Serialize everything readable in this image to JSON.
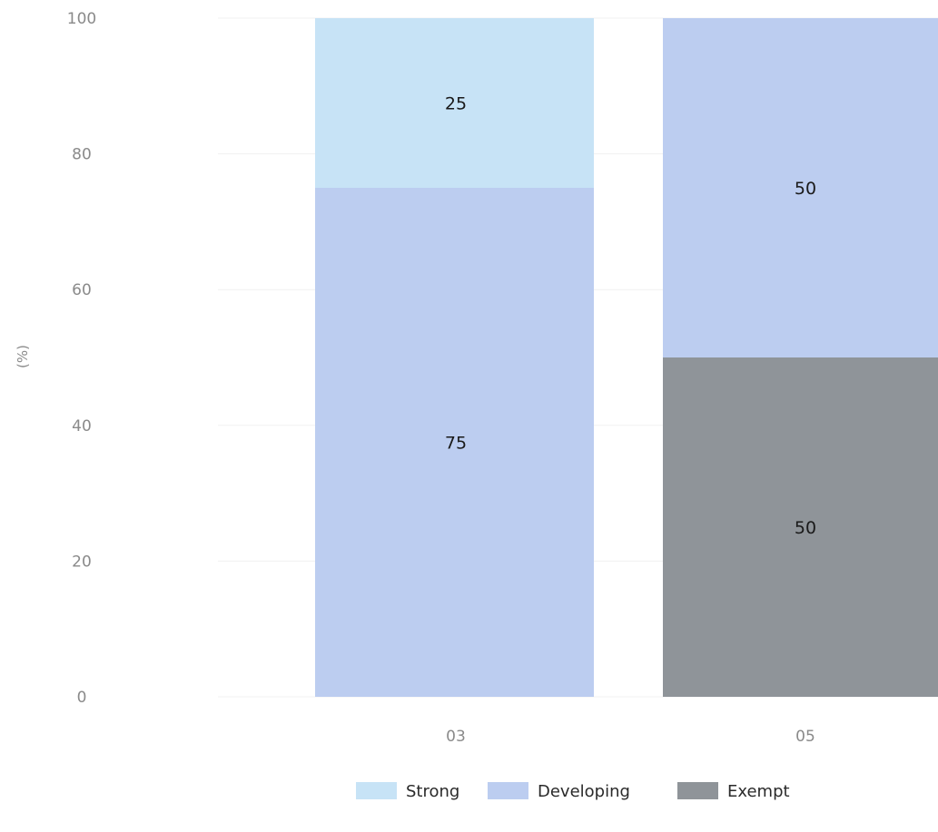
{
  "chart_data": {
    "type": "bar",
    "stacked": true,
    "categories": [
      "03",
      "05"
    ],
    "series": [
      {
        "name": "Exempt",
        "values": [
          0,
          50
        ],
        "color": "#8f9499"
      },
      {
        "name": "Developing",
        "values": [
          75,
          50
        ],
        "color": "#bccdf0"
      },
      {
        "name": "Strong",
        "values": [
          25,
          0
        ],
        "color": "#c7e3f6"
      }
    ],
    "legend_order": [
      "Strong",
      "Developing",
      "Exempt"
    ],
    "legend_position": "bottom",
    "ylabel": "(%)",
    "xlabel": "",
    "title": "",
    "ylim": [
      0,
      100
    ],
    "yticks": [
      0,
      20,
      40,
      60,
      80,
      100
    ],
    "grid": true
  }
}
